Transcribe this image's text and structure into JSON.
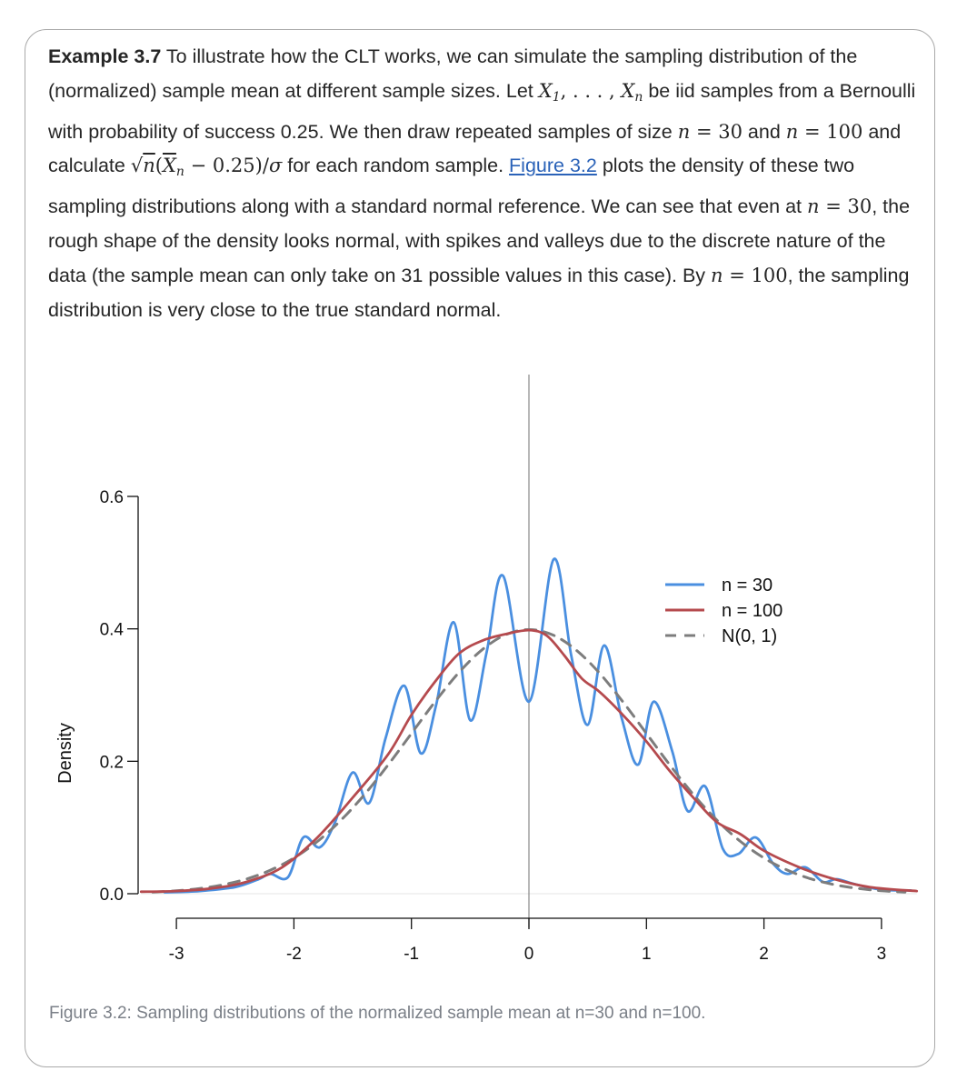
{
  "example": {
    "label": "Example 3.7",
    "t1": " To illustrate how the CLT works, we can simulate the sampling distribution of the (normalized) sample mean at different sample sizes. Let ",
    "m_x1": "X",
    "m_sub1": "1",
    "m_dots": ", . . . , ",
    "m_xn": "X",
    "m_subn": "n",
    "t2": " be iid samples from a Bernoulli with probability of success 0.25. We then draw repeated samples of size ",
    "m_n1": "n",
    "m_eq1": " = 30",
    "t3": " and ",
    "m_n2": "n",
    "m_eq2": " = 100",
    "t4": " and calculate ",
    "m_sqrt": "√",
    "m_sqrtn": "n",
    "m_open": "(",
    "m_xbar": "X",
    "m_subn2": "n",
    "m_minus": " − 0.25)/",
    "m_sigma": "σ",
    "t5": " for each random sample. ",
    "link": "Figure 3.2",
    "t6": " plots the density of these two sampling distributions along with a standard normal reference. We can see that even at ",
    "m_n3": "n",
    "m_eq3": " = 30",
    "t7": ", the rough shape of the density looks normal, with spikes and valleys due to the discrete nature of the data (the sample mean can only take on 31 possible values in this case). By ",
    "m_n4": "n",
    "m_eq4": " = 100",
    "t8": ", the sampling distribution is very close to the true standard normal."
  },
  "caption": "Figure 3.2: Sampling distributions of the normalized sample mean at n=30 and n=100.",
  "chart_data": {
    "type": "line",
    "xlabel": "",
    "ylabel": "Density",
    "xlim": [
      -3.3,
      3.3
    ],
    "ylim": [
      0,
      0.6
    ],
    "x_ticks": [
      -3,
      -2,
      -1,
      0,
      1,
      2,
      3
    ],
    "x_tick_labels": [
      "-3",
      "-2",
      "-1",
      "0",
      "1",
      "2",
      "3"
    ],
    "y_ticks": [
      0,
      0.2,
      0.4,
      0.6
    ],
    "y_tick_labels": [
      "0.0",
      "0.2",
      "0.4",
      "0.6"
    ],
    "vline": 0,
    "legend_position": "top-right",
    "series": [
      {
        "name": "n = 30",
        "color": "#4a8fe0",
        "style": "solid",
        "x": [
          -3.1,
          -2.8,
          -2.5,
          -2.3,
          -2.2,
          -2.05,
          -1.92,
          -1.78,
          -1.65,
          -1.5,
          -1.36,
          -1.22,
          -1.06,
          -0.92,
          -0.79,
          -0.64,
          -0.5,
          -0.36,
          -0.22,
          -0.0,
          0.21,
          0.36,
          0.5,
          0.64,
          0.79,
          0.93,
          1.06,
          1.22,
          1.35,
          1.5,
          1.65,
          1.78,
          1.93,
          2.08,
          2.2,
          2.35,
          2.5,
          2.62,
          2.78,
          3.0,
          3.25
        ],
        "y": [
          0.002,
          0.004,
          0.01,
          0.022,
          0.03,
          0.025,
          0.085,
          0.07,
          0.108,
          0.183,
          0.137,
          0.235,
          0.314,
          0.212,
          0.285,
          0.41,
          0.262,
          0.365,
          0.48,
          0.29,
          0.505,
          0.36,
          0.255,
          0.375,
          0.265,
          0.195,
          0.29,
          0.215,
          0.125,
          0.162,
          0.068,
          0.06,
          0.085,
          0.045,
          0.03,
          0.04,
          0.018,
          0.022,
          0.014,
          0.006,
          0.005
        ]
      },
      {
        "name": "n = 100",
        "color": "#b54a4e",
        "style": "solid",
        "x": [
          -3.3,
          -3.0,
          -2.7,
          -2.4,
          -2.1,
          -1.8,
          -1.5,
          -1.2,
          -1.0,
          -0.8,
          -0.6,
          -0.4,
          -0.2,
          0.0,
          0.15,
          0.3,
          0.45,
          0.6,
          0.8,
          1.0,
          1.2,
          1.4,
          1.6,
          1.8,
          2.0,
          2.3,
          2.6,
          2.9,
          3.3
        ],
        "y": [
          0.003,
          0.004,
          0.008,
          0.018,
          0.04,
          0.085,
          0.145,
          0.21,
          0.27,
          0.32,
          0.362,
          0.382,
          0.392,
          0.398,
          0.39,
          0.36,
          0.325,
          0.305,
          0.27,
          0.23,
          0.185,
          0.145,
          0.108,
          0.09,
          0.065,
          0.04,
          0.022,
          0.01,
          0.004
        ]
      },
      {
        "name": "N(0, 1)",
        "color": "#7d7d7d",
        "style": "dashed",
        "x": [
          -3.2,
          -3.0,
          -2.8,
          -2.6,
          -2.4,
          -2.2,
          -2.0,
          -1.8,
          -1.6,
          -1.4,
          -1.2,
          -1.0,
          -0.8,
          -0.6,
          -0.4,
          -0.2,
          0.0,
          0.2,
          0.4,
          0.6,
          0.8,
          1.0,
          1.2,
          1.4,
          1.6,
          1.8,
          2.0,
          2.2,
          2.4,
          2.6,
          2.8,
          3.0,
          3.2
        ],
        "y": [
          0.0024,
          0.0044,
          0.0079,
          0.0136,
          0.0224,
          0.0355,
          0.054,
          0.079,
          0.1109,
          0.1497,
          0.1942,
          0.242,
          0.2897,
          0.3332,
          0.3683,
          0.391,
          0.3989,
          0.391,
          0.3683,
          0.3332,
          0.2897,
          0.242,
          0.1942,
          0.1497,
          0.1109,
          0.079,
          0.054,
          0.0355,
          0.0224,
          0.0136,
          0.0079,
          0.0044,
          0.0024
        ]
      }
    ]
  }
}
